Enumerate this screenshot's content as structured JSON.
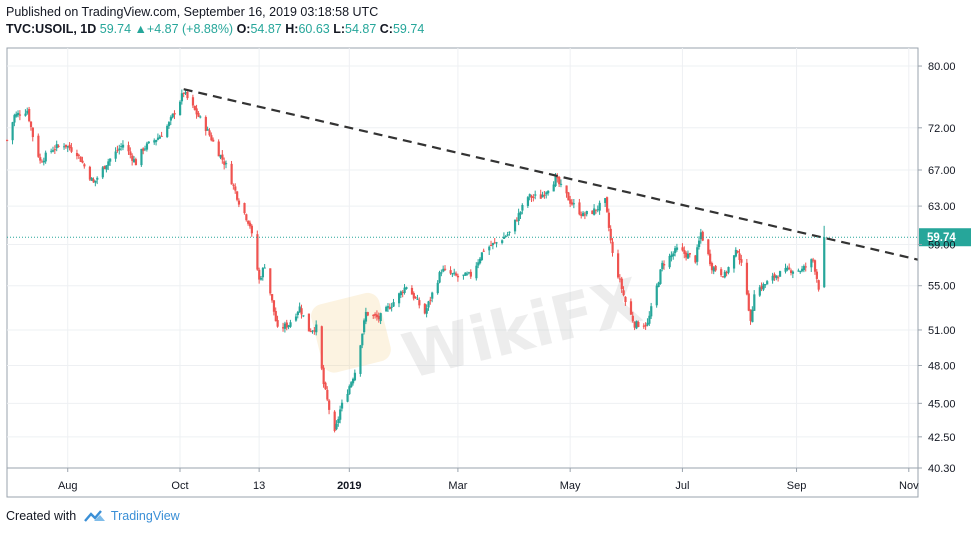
{
  "header": {
    "published": "Published on TradingView.com, September 16, 2019 03:18:58 UTC",
    "symbol": "TVC:USOIL, 1D",
    "last": "59.74",
    "change": "+4.87 (+8.88%)",
    "o_label": "O:",
    "o_val": "54.87",
    "h_label": "H:",
    "h_val": "60.63",
    "l_label": "L:",
    "l_val": "54.87",
    "c_label": "C:",
    "c_val": "59.74"
  },
  "footer": {
    "created_with": "Created with",
    "brand": "TradingView"
  },
  "watermark": "WikiFX",
  "colors": {
    "up": "#26a69a",
    "down": "#ef5350",
    "trendline": "#333333",
    "price_line": "#26a69a",
    "grid": "#eef0f3"
  },
  "chart_data": {
    "type": "candlestick",
    "symbol": "TVC:USOIL",
    "interval": "1D",
    "last_price_label": "59.74",
    "y_scale": "log",
    "ylim": [
      40.3,
      82.5
    ],
    "y_ticks": [
      80.0,
      72.0,
      67.0,
      63.0,
      59.0,
      55.0,
      51.0,
      48.0,
      45.0,
      42.5,
      40.3
    ],
    "y_tick_labels": [
      "80.00",
      "72.00",
      "67.00",
      "63.00",
      "59.00",
      "55.00",
      "51.00",
      "48.00",
      "45.00",
      "42.50",
      "40.30"
    ],
    "x_ticks": [
      "Aug",
      "Oct",
      "13",
      "2019",
      "Mar",
      "May",
      "Jul",
      "Sep",
      "Nov"
    ],
    "x_tick_dates": [
      "2018-08-01",
      "2018-10-01",
      "2018-11-13",
      "2019-01-01",
      "2019-03-01",
      "2019-05-01",
      "2019-07-01",
      "2019-09-01",
      "2019-11-01"
    ],
    "x_range": [
      "2018-06-29",
      "2019-11-06"
    ],
    "trendline": {
      "style": "dashed",
      "start": {
        "date": "2018-10-03",
        "value": 76.9
      },
      "end": {
        "date": "2019-11-06",
        "value": 57.5
      }
    },
    "price_line": {
      "value": 59.74,
      "style": "dotted"
    },
    "path": [
      [
        "2018-06-29",
        70.5
      ],
      [
        "2018-07-03",
        73.5
      ],
      [
        "2018-07-10",
        74.2
      ],
      [
        "2018-07-13",
        71.0
      ],
      [
        "2018-07-17",
        68.0
      ],
      [
        "2018-07-24",
        69.5
      ],
      [
        "2018-07-30",
        70.0
      ],
      [
        "2018-08-06",
        69.0
      ],
      [
        "2018-08-15",
        65.5
      ],
      [
        "2018-08-22",
        67.8
      ],
      [
        "2018-08-31",
        70.0
      ],
      [
        "2018-09-07",
        67.8
      ],
      [
        "2018-09-11",
        69.5
      ],
      [
        "2018-09-20",
        71.0
      ],
      [
        "2018-09-25",
        72.5
      ],
      [
        "2018-10-03",
        76.5
      ],
      [
        "2018-10-08",
        74.5
      ],
      [
        "2018-10-15",
        72.0
      ],
      [
        "2018-10-22",
        69.0
      ],
      [
        "2018-10-26",
        67.5
      ],
      [
        "2018-11-02",
        63.5
      ],
      [
        "2018-11-08",
        61.0
      ],
      [
        "2018-11-13",
        55.5
      ],
      [
        "2018-11-16",
        57.0
      ],
      [
        "2018-11-23",
        51.0
      ],
      [
        "2018-11-29",
        51.5
      ],
      [
        "2018-12-05",
        53.0
      ],
      [
        "2018-12-10",
        51.0
      ],
      [
        "2018-12-14",
        51.2
      ],
      [
        "2018-12-18",
        46.5
      ],
      [
        "2018-12-24",
        42.7
      ],
      [
        "2018-12-27",
        44.5
      ],
      [
        "2019-01-04",
        47.5
      ],
      [
        "2019-01-10",
        52.5
      ],
      [
        "2019-01-17",
        52.0
      ],
      [
        "2019-01-25",
        53.5
      ],
      [
        "2019-02-01",
        55.0
      ],
      [
        "2019-02-11",
        52.5
      ],
      [
        "2019-02-20",
        56.5
      ],
      [
        "2019-03-01",
        55.8
      ],
      [
        "2019-03-08",
        56.0
      ],
      [
        "2019-03-15",
        58.5
      ],
      [
        "2019-03-22",
        59.2
      ],
      [
        "2019-03-29",
        60.2
      ],
      [
        "2019-04-08",
        64.0
      ],
      [
        "2019-04-15",
        64.0
      ],
      [
        "2019-04-23",
        66.0
      ],
      [
        "2019-05-01",
        63.5
      ],
      [
        "2019-05-08",
        62.0
      ],
      [
        "2019-05-14",
        62.5
      ],
      [
        "2019-05-20",
        63.5
      ],
      [
        "2019-05-24",
        58.0
      ],
      [
        "2019-05-31",
        53.5
      ],
      [
        "2019-06-05",
        51.5
      ],
      [
        "2019-06-12",
        51.5
      ],
      [
        "2019-06-20",
        57.0
      ],
      [
        "2019-06-28",
        58.5
      ],
      [
        "2019-07-08",
        57.5
      ],
      [
        "2019-07-11",
        60.2
      ],
      [
        "2019-07-17",
        56.8
      ],
      [
        "2019-07-24",
        56.0
      ],
      [
        "2019-07-31",
        58.5
      ],
      [
        "2019-08-05",
        54.5
      ],
      [
        "2019-08-07",
        51.5
      ],
      [
        "2019-08-09",
        54.5
      ],
      [
        "2019-08-14",
        55.0
      ],
      [
        "2019-08-21",
        56.0
      ],
      [
        "2019-08-28",
        56.5
      ],
      [
        "2019-09-04",
        56.5
      ],
      [
        "2019-09-10",
        57.5
      ],
      [
        "2019-09-13",
        54.87
      ],
      [
        "2019-09-16",
        59.74
      ]
    ]
  }
}
